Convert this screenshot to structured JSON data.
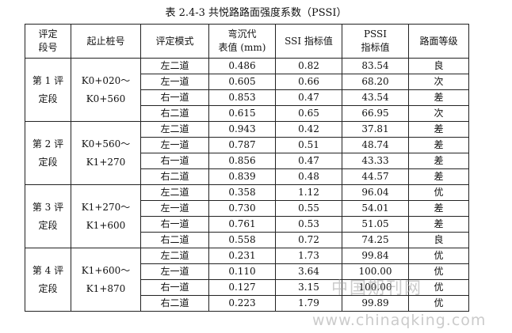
{
  "caption": "表 2.4-3  共悦路路面强度系数（PSSI）",
  "headers": [
    [
      "评定",
      "段号"
    ],
    [
      "起止桩号"
    ],
    [
      "评定模式"
    ],
    [
      "弯沉代",
      "表值 (mm)"
    ],
    [
      "SSI 指标值"
    ],
    [
      "PSSI",
      "指标值"
    ],
    [
      "路面等级"
    ]
  ],
  "segments": [
    {
      "segment_label": [
        "第 1 评",
        "定段"
      ],
      "stake_range": [
        "K0+020～",
        "K0+560"
      ],
      "rows": [
        {
          "mode": "左二道",
          "deflection": "0.486",
          "ssi": "0.82",
          "pssi": "83.54",
          "grade": "良"
        },
        {
          "mode": "左一道",
          "deflection": "0.605",
          "ssi": "0.66",
          "pssi": "68.20",
          "grade": "次"
        },
        {
          "mode": "右一道",
          "deflection": "0.853",
          "ssi": "0.47",
          "pssi": "43.54",
          "grade": "差"
        },
        {
          "mode": "右二道",
          "deflection": "0.615",
          "ssi": "0.65",
          "pssi": "66.95",
          "grade": "次"
        }
      ]
    },
    {
      "segment_label": [
        "第 2 评",
        "定段"
      ],
      "stake_range": [
        "K0+560～",
        "K1+270"
      ],
      "rows": [
        {
          "mode": "左二道",
          "deflection": "0.943",
          "ssi": "0.42",
          "pssi": "37.81",
          "grade": "差"
        },
        {
          "mode": "左一道",
          "deflection": "0.787",
          "ssi": "0.51",
          "pssi": "48.74",
          "grade": "差"
        },
        {
          "mode": "右一道",
          "deflection": "0.856",
          "ssi": "0.47",
          "pssi": "43.33",
          "grade": "差"
        },
        {
          "mode": "右二道",
          "deflection": "0.839",
          "ssi": "0.48",
          "pssi": "44.57",
          "grade": "差"
        }
      ]
    },
    {
      "segment_label": [
        "第 3 评",
        "定段"
      ],
      "stake_range": [
        "K1+270～",
        "K1+600"
      ],
      "rows": [
        {
          "mode": "左二道",
          "deflection": "0.358",
          "ssi": "1.12",
          "pssi": "96.04",
          "grade": "优"
        },
        {
          "mode": "左一道",
          "deflection": "0.730",
          "ssi": "0.55",
          "pssi": "54.01",
          "grade": "差"
        },
        {
          "mode": "右一道",
          "deflection": "0.761",
          "ssi": "0.53",
          "pssi": "51.05",
          "grade": "差"
        },
        {
          "mode": "右二道",
          "deflection": "0.558",
          "ssi": "0.72",
          "pssi": "74.25",
          "grade": "良"
        }
      ]
    },
    {
      "segment_label": [
        "第 4 评",
        "定段"
      ],
      "stake_range": [
        "K1+600～",
        "K1+870"
      ],
      "rows": [
        {
          "mode": "左二道",
          "deflection": "0.231",
          "ssi": "1.73",
          "pssi": "99.84",
          "grade": "优"
        },
        {
          "mode": "左一道",
          "deflection": "0.110",
          "ssi": "3.64",
          "pssi": "100.00",
          "grade": "优"
        },
        {
          "mode": "右一道",
          "deflection": "0.127",
          "ssi": "3.15",
          "pssi": "100.00",
          "grade": "优"
        },
        {
          "mode": "右二道",
          "deflection": "0.223",
          "ssi": "1.79",
          "pssi": "99.89",
          "grade": "优"
        }
      ]
    }
  ],
  "watermark": {
    "site_name": "中国期刊网",
    "url": "www.chinaqking.com"
  }
}
